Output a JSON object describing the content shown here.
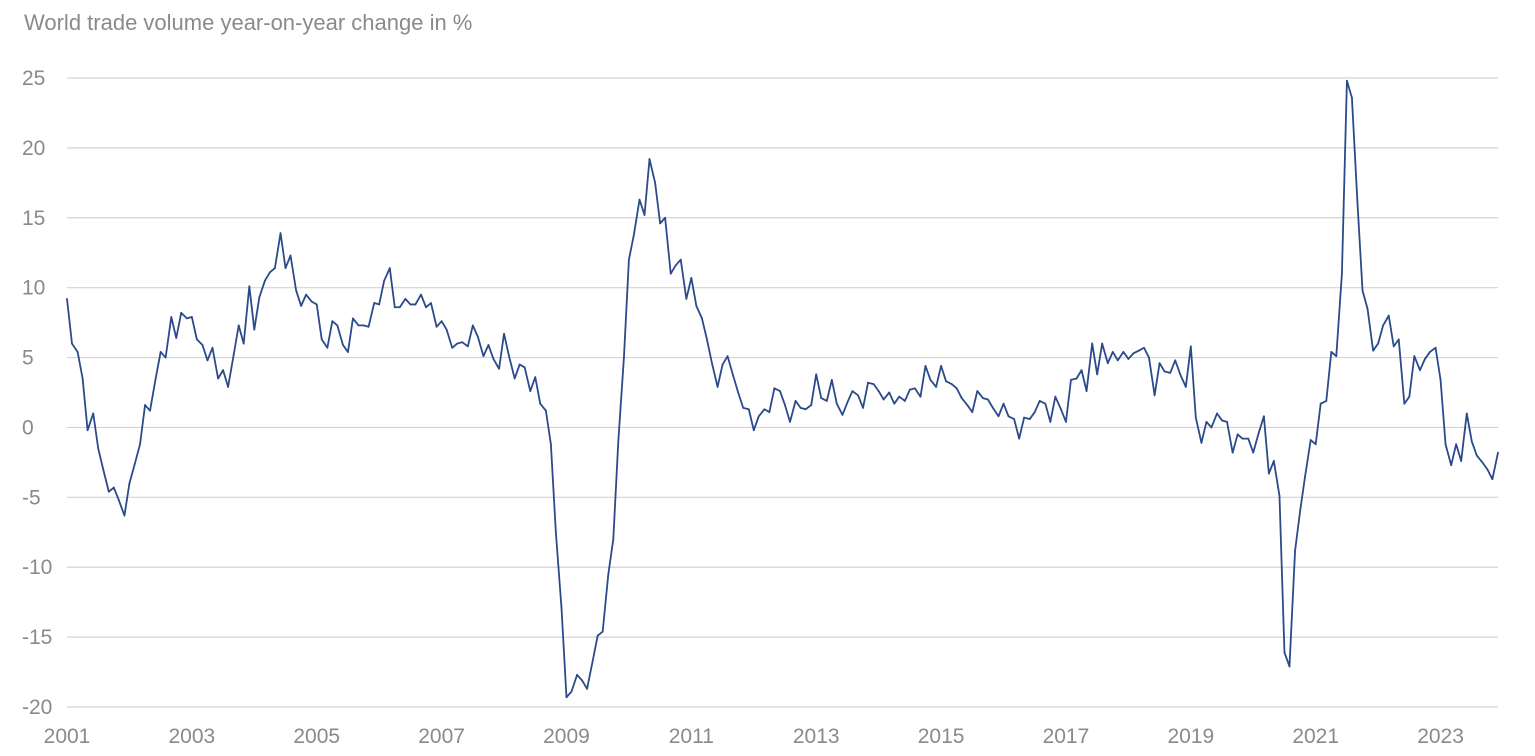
{
  "chart_data": {
    "type": "line",
    "title": "World trade volume year-on-year change in %",
    "xlabel": "",
    "ylabel": "",
    "x_ticks": [
      "2001",
      "2003",
      "2005",
      "2007",
      "2009",
      "2011",
      "2013",
      "2015",
      "2017",
      "2019",
      "2021",
      "2023"
    ],
    "y_ticks": [
      "25",
      "20",
      "15",
      "10",
      "5",
      "0",
      "-5",
      "-10",
      "-15",
      "-20"
    ],
    "ylim": [
      -20,
      25
    ],
    "xlim": [
      2001.0,
      2023.92
    ],
    "grid": true,
    "line_color": "#2b4a8b",
    "series": [
      {
        "x": [
          2001.0,
          2001.08,
          2001.17,
          2001.25,
          2001.33,
          2001.42,
          2001.5,
          2001.58,
          2001.67,
          2001.75,
          2001.83,
          2001.92,
          2002.0,
          2002.08,
          2002.17,
          2002.25,
          2002.33,
          2002.42,
          2002.5,
          2002.58,
          2002.67,
          2002.75,
          2002.83,
          2002.92,
          2003.0,
          2003.08,
          2003.17,
          2003.25,
          2003.33,
          2003.42,
          2003.5,
          2003.58,
          2003.67,
          2003.75,
          2003.83,
          2003.92,
          2004.0,
          2004.08,
          2004.17,
          2004.25,
          2004.33,
          2004.42,
          2004.5,
          2004.58,
          2004.67,
          2004.75,
          2004.83,
          2004.92,
          2005.0,
          2005.08,
          2005.17,
          2005.25,
          2005.33,
          2005.42,
          2005.5,
          2005.58,
          2005.67,
          2005.75,
          2005.83,
          2005.92,
          2006.0,
          2006.08,
          2006.17,
          2006.25,
          2006.33,
          2006.42,
          2006.5,
          2006.58,
          2006.67,
          2006.75,
          2006.83,
          2006.92,
          2007.0,
          2007.08,
          2007.17,
          2007.25,
          2007.33,
          2007.42,
          2007.5,
          2007.58,
          2007.67,
          2007.75,
          2007.83,
          2007.92,
          2008.0,
          2008.08,
          2008.17,
          2008.25,
          2008.33,
          2008.42,
          2008.5,
          2008.58,
          2008.67,
          2008.75,
          2008.83,
          2008.92,
          2009.0,
          2009.08,
          2009.17,
          2009.25,
          2009.33,
          2009.42,
          2009.5,
          2009.58,
          2009.67,
          2009.75,
          2009.83,
          2009.92,
          2010.0,
          2010.08,
          2010.17,
          2010.25,
          2010.33,
          2010.42,
          2010.5,
          2010.58,
          2010.67,
          2010.75,
          2010.83,
          2010.92,
          2011.0,
          2011.08,
          2011.17,
          2011.25,
          2011.33,
          2011.42,
          2011.5,
          2011.58,
          2011.67,
          2011.75,
          2011.83,
          2011.92,
          2012.0,
          2012.08,
          2012.17,
          2012.25,
          2012.33,
          2012.42,
          2012.5,
          2012.58,
          2012.67,
          2012.75,
          2012.83,
          2012.92,
          2013.0,
          2013.08,
          2013.17,
          2013.25,
          2013.33,
          2013.42,
          2013.5,
          2013.58,
          2013.67,
          2013.75,
          2013.83,
          2013.92,
          2014.0,
          2014.08,
          2014.17,
          2014.25,
          2014.33,
          2014.42,
          2014.5,
          2014.58,
          2014.67,
          2014.75,
          2014.83,
          2014.92,
          2015.0,
          2015.08,
          2015.17,
          2015.25,
          2015.33,
          2015.42,
          2015.5,
          2015.58,
          2015.67,
          2015.75,
          2015.83,
          2015.92,
          2016.0,
          2016.08,
          2016.17,
          2016.25,
          2016.33,
          2016.42,
          2016.5,
          2016.58,
          2016.67,
          2016.75,
          2016.83,
          2016.92,
          2017.0,
          2017.08,
          2017.17,
          2017.25,
          2017.33,
          2017.42,
          2017.5,
          2017.58,
          2017.67,
          2017.75,
          2017.83,
          2017.92,
          2018.0,
          2018.08,
          2018.17,
          2018.25,
          2018.33,
          2018.42,
          2018.5,
          2018.58,
          2018.67,
          2018.75,
          2018.83,
          2018.92,
          2019.0,
          2019.08,
          2019.17,
          2019.25,
          2019.33,
          2019.42,
          2019.5,
          2019.58,
          2019.67,
          2019.75,
          2019.83,
          2019.92,
          2020.0,
          2020.08,
          2020.17,
          2020.25,
          2020.33,
          2020.42,
          2020.5,
          2020.58,
          2020.67,
          2020.75,
          2020.83,
          2020.92,
          2021.0,
          2021.08,
          2021.17,
          2021.25,
          2021.33,
          2021.42,
          2021.5,
          2021.58,
          2021.67,
          2021.75,
          2021.83,
          2021.92,
          2022.0,
          2022.08,
          2022.17,
          2022.25,
          2022.33,
          2022.42,
          2022.5,
          2022.58,
          2022.67,
          2022.75,
          2022.83,
          2022.92,
          2023.0,
          2023.08,
          2023.17,
          2023.25,
          2023.33,
          2023.42,
          2023.5,
          2023.58,
          2023.67,
          2023.75,
          2023.83,
          2023.92
        ],
        "y": [
          9.2,
          6.0,
          5.4,
          3.5,
          -0.2,
          1.0,
          -1.5,
          -3.0,
          -4.6,
          -4.3,
          -5.2,
          -6.3,
          -4.0,
          -2.7,
          -1.2,
          1.6,
          1.2,
          3.5,
          5.4,
          5.0,
          7.9,
          6.4,
          8.2,
          7.8,
          7.9,
          6.3,
          5.9,
          4.8,
          5.7,
          3.5,
          4.1,
          2.9,
          5.2,
          7.3,
          6.0,
          10.1,
          7.0,
          9.3,
          10.5,
          11.1,
          11.4,
          13.9,
          11.4,
          12.3,
          9.8,
          8.7,
          9.5,
          9.0,
          8.8,
          6.3,
          5.7,
          7.6,
          7.3,
          5.9,
          5.4,
          7.8,
          7.3,
          7.3,
          7.2,
          8.9,
          8.8,
          10.5,
          11.4,
          8.6,
          8.6,
          9.2,
          8.8,
          8.8,
          9.5,
          8.6,
          8.9,
          7.2,
          7.6,
          7.0,
          5.7,
          6.0,
          6.1,
          5.8,
          7.3,
          6.5,
          5.1,
          5.9,
          4.9,
          4.2,
          6.7,
          5.1,
          3.5,
          4.5,
          4.3,
          2.6,
          3.6,
          1.7,
          1.2,
          -1.2,
          -7.5,
          -12.9,
          -19.3,
          -18.9,
          -17.7,
          -18.1,
          -18.7,
          -16.7,
          -14.9,
          -14.6,
          -10.5,
          -8.0,
          -1.0,
          5.0,
          12.0,
          13.8,
          16.3,
          15.2,
          19.2,
          17.5,
          14.6,
          15.0,
          11.0,
          11.6,
          12.0,
          9.2,
          10.7,
          8.7,
          7.8,
          6.3,
          4.6,
          2.9,
          4.5,
          5.1,
          3.7,
          2.5,
          1.4,
          1.3,
          -0.2,
          0.8,
          1.3,
          1.1,
          2.8,
          2.6,
          1.6,
          0.4,
          1.9,
          1.4,
          1.3,
          1.6,
          3.8,
          2.1,
          1.9,
          3.4,
          1.7,
          0.9,
          1.8,
          2.6,
          2.3,
          1.4,
          3.2,
          3.1,
          2.6,
          2.0,
          2.5,
          1.7,
          2.2,
          1.9,
          2.7,
          2.8,
          2.2,
          4.4,
          3.4,
          2.9,
          4.4,
          3.3,
          3.1,
          2.8,
          2.1,
          1.6,
          1.1,
          2.6,
          2.1,
          2.0,
          1.4,
          0.8,
          1.7,
          0.8,
          0.6,
          -0.8,
          0.7,
          0.6,
          1.1,
          1.9,
          1.7,
          0.4,
          2.2,
          1.3,
          0.4,
          3.4,
          3.5,
          4.1,
          2.6,
          6.0,
          3.8,
          6.0,
          4.6,
          5.4,
          4.8,
          5.4,
          4.9,
          5.3,
          5.5,
          5.7,
          5.0,
          2.3,
          4.6,
          4.0,
          3.9,
          4.8,
          3.8,
          2.9,
          5.8,
          0.7,
          -1.1,
          0.4,
          0.0,
          1.0,
          0.5,
          0.4,
          -1.8,
          -0.5,
          -0.8,
          -0.8,
          -1.8,
          -0.5,
          0.8,
          -3.3,
          -2.4,
          -4.9,
          -16.1,
          -17.1,
          -8.8,
          -6.0,
          -3.5,
          -0.9,
          -1.2,
          1.7,
          1.9,
          5.4,
          5.1,
          11.0,
          24.8,
          23.6,
          16.0,
          9.8,
          8.5,
          5.5,
          6.0,
          7.3,
          8.0,
          5.8,
          6.3,
          1.7,
          2.2,
          5.1,
          4.1,
          4.9,
          5.4,
          5.7,
          3.4,
          -1.2,
          -2.7,
          -1.2,
          -2.4,
          1.0,
          -1.0,
          -2.0,
          -2.5,
          -3.0,
          -3.7,
          -1.8
        ]
      }
    ]
  }
}
